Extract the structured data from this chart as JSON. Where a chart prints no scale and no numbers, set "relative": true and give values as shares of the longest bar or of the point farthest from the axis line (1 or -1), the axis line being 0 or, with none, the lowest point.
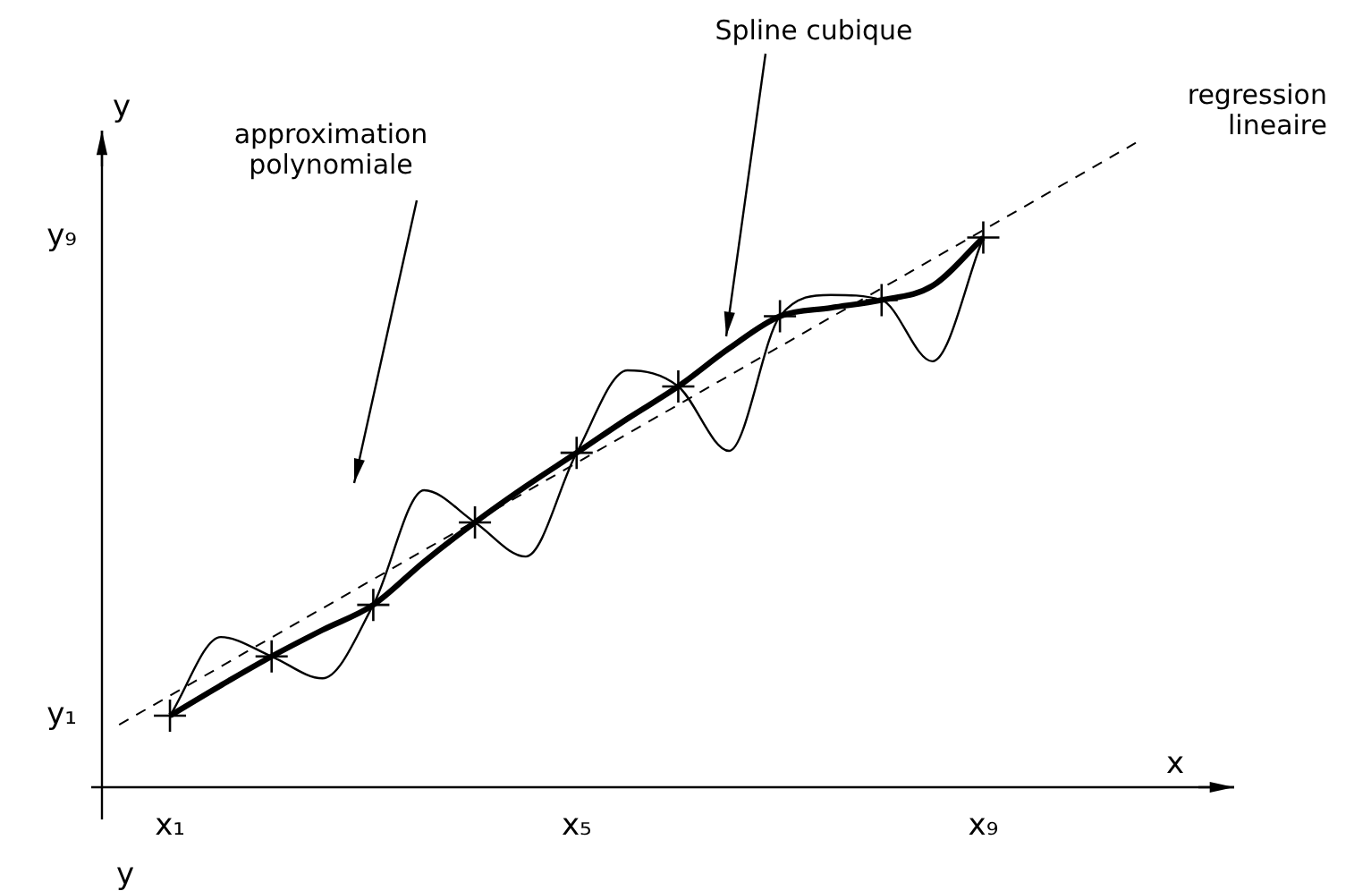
{
  "chart_data": {
    "type": "line",
    "relative": true,
    "xlabel": "x",
    "ylabel": "y",
    "legend": false,
    "categories": [
      null,
      "x₁",
      null,
      null,
      null,
      null,
      null,
      null,
      null,
      "x₅",
      null,
      null,
      null,
      null,
      null,
      null,
      null,
      "x₉",
      null,
      null,
      null
    ],
    "annotations": [
      "y₁",
      "y₉",
      "y"
    ],
    "series": [
      {
        "name": "regression lineaire",
        "color": "#000000",
        "line_style": "dashed",
        "marker": "none",
        "values": [
          0.097,
          null,
          null,
          null,
          null,
          null,
          null,
          null,
          null,
          null,
          null,
          null,
          null,
          null,
          null,
          null,
          null,
          null,
          null,
          null,
          1
        ]
      },
      {
        "name": "approximation polynomiale",
        "color": "#000000",
        "line_style": "solid",
        "marker": "none",
        "values": [
          null,
          0.111,
          0.233,
          0.203,
          0.169,
          0.283,
          0.461,
          0.411,
          0.358,
          0.519,
          0.647,
          0.622,
          0.522,
          0.731,
          0.764,
          0.756,
          0.661,
          0.853,
          null,
          null,
          null
        ]
      },
      {
        "name": "Spline cubique",
        "color": "#000000",
        "line_style": "solid",
        "marker": "none",
        "values": [
          null,
          0.111,
          0.158,
          0.203,
          0.244,
          0.283,
          0.35,
          0.411,
          0.467,
          0.519,
          0.572,
          0.622,
          0.681,
          0.731,
          0.744,
          0.756,
          0.778,
          0.853,
          null,
          null,
          null
        ]
      },
      {
        "type": "scatter",
        "color": "#000000",
        "marker": "cross",
        "values": [
          null,
          0.111,
          null,
          0.203,
          null,
          0.283,
          null,
          0.411,
          null,
          0.519,
          null,
          0.622,
          null,
          0.731,
          null,
          0.756,
          null,
          0.853,
          null,
          null,
          null
        ]
      }
    ]
  }
}
